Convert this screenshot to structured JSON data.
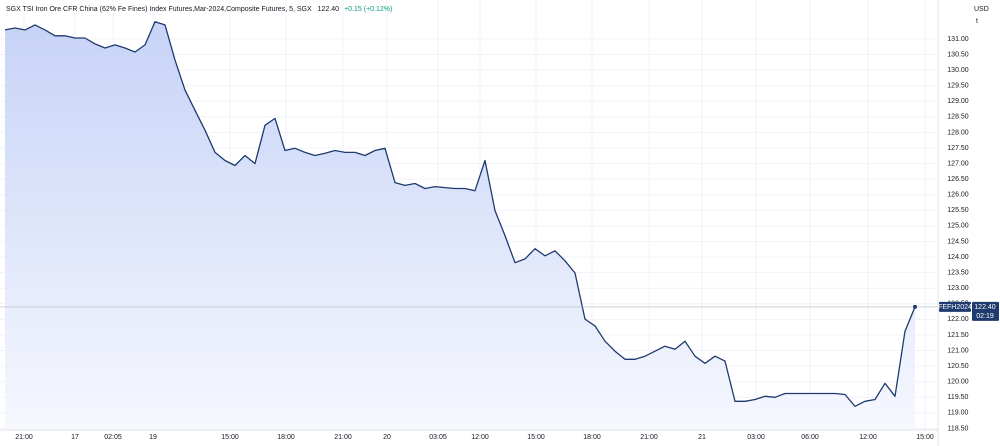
{
  "chart_data": {
    "type": "area",
    "title": "SGX TSI Iron Ore CFR China (62% Fe Fines) Index Futures,Mar-2024,Composite Futures, 5, SGX",
    "last": "122.40",
    "change": "+0.15 (+0.12%)",
    "currency": "USD",
    "unit": "t",
    "symbol": "FEFH2024",
    "countdown": "02:19",
    "grid": true,
    "xlim": [
      0,
      93.2
    ],
    "ylim": [
      118.45,
      132.25
    ],
    "xticks": [
      {
        "value": 1.9,
        "label": "21:00"
      },
      {
        "value": 7,
        "label": "17"
      },
      {
        "value": 10.8,
        "label": "02:05"
      },
      {
        "value": 14.8,
        "label": "19"
      },
      {
        "value": 22.5,
        "label": "15:00"
      },
      {
        "value": 28.1,
        "label": "18:00"
      },
      {
        "value": 33.8,
        "label": "21:00"
      },
      {
        "value": 38.2,
        "label": "20"
      },
      {
        "value": 43.3,
        "label": "03:05"
      },
      {
        "value": 47.5,
        "label": "12:00"
      },
      {
        "value": 53.1,
        "label": "15:00"
      },
      {
        "value": 58.7,
        "label": "18:00"
      },
      {
        "value": 64.4,
        "label": "21:00"
      },
      {
        "value": 69.7,
        "label": "21"
      },
      {
        "value": 75.1,
        "label": "03:00"
      },
      {
        "value": 80.5,
        "label": "06:00"
      },
      {
        "value": 86.3,
        "label": "12:00"
      },
      {
        "value": 92,
        "label": "15:00"
      }
    ],
    "yticks": [
      {
        "value": 131,
        "label": "131.00"
      },
      {
        "value": 130.5,
        "label": "130.50"
      },
      {
        "value": 130,
        "label": "130.00"
      },
      {
        "value": 129.5,
        "label": "129.50"
      },
      {
        "value": 129,
        "label": "129.00"
      },
      {
        "value": 128.5,
        "label": "128.50"
      },
      {
        "value": 128,
        "label": "128.00"
      },
      {
        "value": 127.5,
        "label": "127.50"
      },
      {
        "value": 127,
        "label": "127.00"
      },
      {
        "value": 126.5,
        "label": "126.50"
      },
      {
        "value": 126,
        "label": "126.00"
      },
      {
        "value": 125.5,
        "label": "125.50"
      },
      {
        "value": 125,
        "label": "125.00"
      },
      {
        "value": 124.5,
        "label": "124.50"
      },
      {
        "value": 124,
        "label": "124.00"
      },
      {
        "value": 123.5,
        "label": "123.50"
      },
      {
        "value": 123,
        "label": "123.00"
      },
      {
        "value": 122.5,
        "label": "122.50"
      },
      {
        "value": 122,
        "label": "122.00"
      },
      {
        "value": 121.5,
        "label": "121.50"
      },
      {
        "value": 121,
        "label": "121.00"
      },
      {
        "value": 120.5,
        "label": "120.50"
      },
      {
        "value": 120,
        "label": "120.00"
      },
      {
        "value": 119.5,
        "label": "119.50"
      },
      {
        "value": 119,
        "label": "119.00"
      },
      {
        "value": 118.5,
        "label": "118.50"
      }
    ],
    "series": [
      {
        "color": "#1e3a6e",
        "x": [
          0,
          1,
          2,
          3,
          4,
          5,
          6,
          7,
          8,
          9,
          10,
          11,
          12,
          13,
          14,
          15,
          16,
          17,
          18,
          19,
          20,
          21,
          22,
          23,
          24,
          25,
          26,
          27,
          28,
          29,
          30,
          31,
          32,
          33,
          34,
          35,
          36,
          37,
          38,
          39,
          40,
          41,
          42,
          43,
          44,
          45,
          46,
          47,
          48,
          49,
          50,
          51,
          52,
          53,
          54,
          55,
          56,
          57,
          58,
          59,
          60,
          61,
          62,
          63,
          64,
          65,
          66,
          67,
          68,
          69,
          70,
          71,
          72,
          73,
          74,
          75,
          76,
          77,
          78,
          79,
          80,
          81,
          82,
          83,
          84,
          85,
          86,
          87,
          88,
          89,
          90,
          91
        ],
        "values": [
          131.29,
          131.35,
          131.29,
          131.45,
          131.29,
          131.1,
          131.1,
          131.03,
          131.03,
          130.84,
          130.71,
          130.81,
          130.71,
          130.58,
          130.81,
          131.55,
          131.45,
          130.32,
          129.36,
          128.71,
          128.07,
          127.36,
          127.1,
          126.94,
          127.26,
          127.0,
          128.23,
          128.45,
          127.42,
          127.49,
          127.36,
          127.26,
          127.33,
          127.42,
          127.36,
          127.36,
          127.26,
          127.42,
          127.49,
          126.39,
          126.3,
          126.36,
          126.2,
          126.26,
          126.23,
          126.2,
          126.2,
          126.13,
          127.1,
          125.49,
          124.69,
          123.82,
          123.94,
          124.27,
          124.04,
          124.2,
          123.88,
          123.49,
          122.01,
          121.79,
          121.3,
          120.98,
          120.72,
          120.72,
          120.82,
          120.98,
          121.14,
          121.04,
          121.3,
          120.82,
          120.59,
          120.82,
          120.66,
          119.37,
          119.37,
          119.43,
          119.53,
          119.5,
          119.62,
          119.62,
          119.62,
          119.62,
          119.62,
          119.62,
          119.59,
          119.21,
          119.37,
          119.43,
          119.95,
          119.53,
          121.62,
          122.4
        ]
      }
    ]
  }
}
